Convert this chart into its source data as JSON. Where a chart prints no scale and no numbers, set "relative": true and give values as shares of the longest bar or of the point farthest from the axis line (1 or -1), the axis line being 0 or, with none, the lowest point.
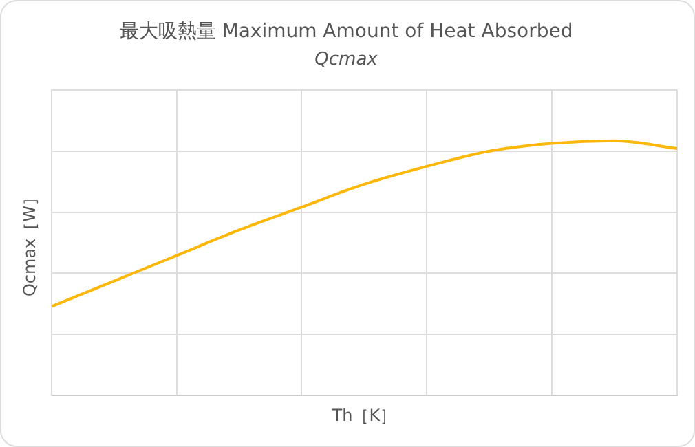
{
  "chart_data": {
    "type": "line",
    "title": "最大吸熱量 Maximum Amount of Heat Absorbed",
    "subtitle": "Qcmax",
    "xlabel": "Th［K］",
    "ylabel": "Qcmax［W］",
    "categories": [
      null,
      null,
      null,
      null,
      null,
      null,
      null,
      null,
      null,
      null,
      null
    ],
    "series": [
      {
        "color": "#fbb70a",
        "values": [
          0.35,
          0.45,
          0.55,
          0.65,
          0.74,
          0.83,
          0.9,
          0.96,
          0.99,
          1,
          0.97
        ]
      }
    ],
    "relative": true,
    "grid": true,
    "legend": false,
    "tick_labels": false,
    "marker": "none",
    "line_style": "solid"
  }
}
